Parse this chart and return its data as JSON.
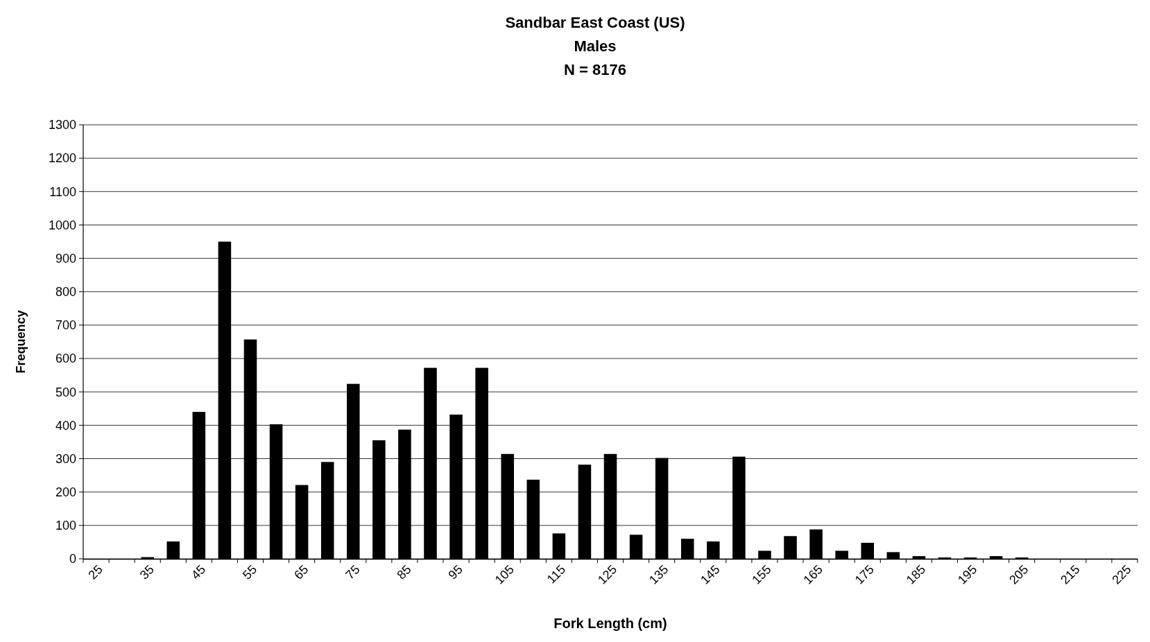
{
  "chart_data": {
    "type": "bar",
    "title": "Sandbar East Coast (US)",
    "subtitle": "Males\nN = 8176",
    "xlabel": "Fork Length (cm)",
    "ylabel": "Frequency",
    "categories": [
      "25",
      null,
      "35",
      null,
      "45",
      null,
      "55",
      null,
      "65",
      null,
      "75",
      null,
      "85",
      null,
      "95",
      null,
      "105",
      null,
      "115",
      null,
      "125",
      null,
      "135",
      null,
      "145",
      null,
      "155",
      null,
      "165",
      null,
      "175",
      null,
      "185",
      null,
      "195",
      null,
      "205",
      null,
      "215",
      null,
      "225"
    ],
    "values": [
      0,
      0,
      5,
      52,
      440,
      950,
      657,
      403,
      221,
      290,
      524,
      355,
      387,
      572,
      432,
      572,
      314,
      237,
      76,
      282,
      314,
      72,
      302,
      60,
      52,
      306,
      24,
      68,
      88,
      24,
      48,
      20,
      8,
      4,
      4,
      8,
      4,
      0,
      0,
      0,
      0
    ],
    "color": "#000000",
    "ylim": [
      0,
      1300
    ],
    "yticks": [
      0,
      100,
      200,
      300,
      400,
      500,
      600,
      700,
      800,
      900,
      1000,
      1100,
      1200,
      1300
    ],
    "grid": "y"
  }
}
